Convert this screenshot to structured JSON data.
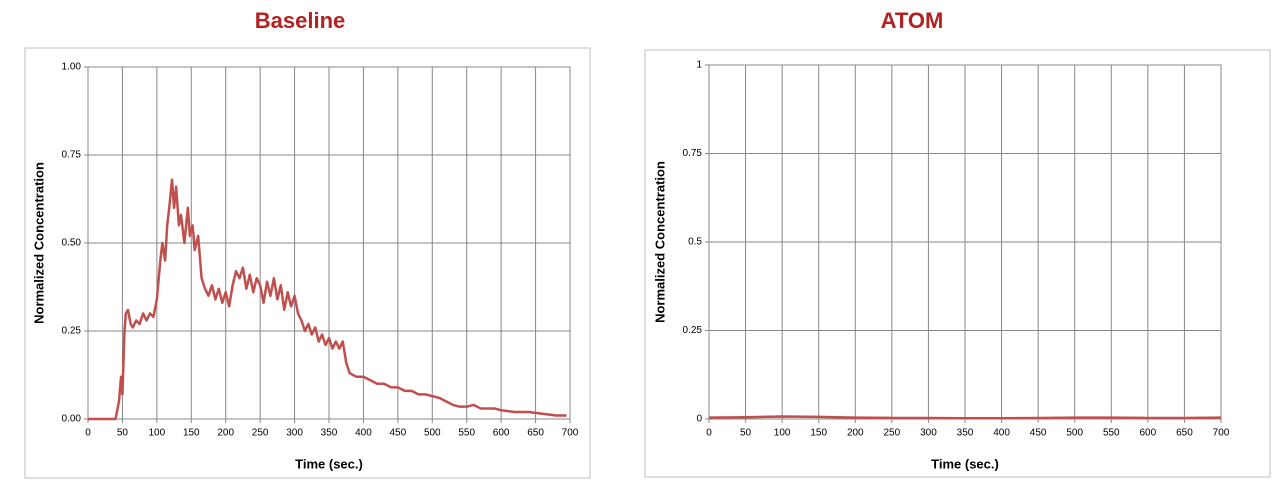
{
  "chart_data": [
    {
      "type": "line",
      "title": "Baseline",
      "xlabel": "Time (sec.)",
      "ylabel": "Normalized Concentration",
      "color": "#c0504d",
      "grid": true,
      "x": [
        0,
        10,
        20,
        30,
        40,
        45,
        48,
        50,
        53,
        55,
        58,
        62,
        65,
        70,
        75,
        80,
        85,
        90,
        95,
        100,
        105,
        108,
        112,
        115,
        118,
        122,
        125,
        128,
        132,
        135,
        140,
        145,
        148,
        152,
        155,
        160,
        165,
        170,
        175,
        180,
        185,
        190,
        195,
        200,
        205,
        210,
        215,
        220,
        225,
        230,
        235,
        240,
        245,
        250,
        255,
        260,
        265,
        270,
        275,
        280,
        285,
        290,
        295,
        300,
        305,
        310,
        315,
        320,
        325,
        330,
        335,
        340,
        345,
        350,
        355,
        360,
        365,
        370,
        375,
        380,
        390,
        400,
        410,
        420,
        430,
        440,
        450,
        460,
        470,
        480,
        490,
        500,
        510,
        520,
        530,
        540,
        550,
        560,
        570,
        580,
        590,
        600,
        620,
        640,
        660,
        680,
        695
      ],
      "values": [
        0,
        0,
        0,
        0,
        0,
        0.05,
        0.12,
        0.07,
        0.25,
        0.3,
        0.31,
        0.27,
        0.26,
        0.28,
        0.27,
        0.3,
        0.28,
        0.3,
        0.29,
        0.34,
        0.45,
        0.5,
        0.45,
        0.55,
        0.6,
        0.68,
        0.6,
        0.66,
        0.55,
        0.58,
        0.5,
        0.6,
        0.52,
        0.55,
        0.48,
        0.52,
        0.4,
        0.37,
        0.35,
        0.38,
        0.34,
        0.37,
        0.33,
        0.36,
        0.32,
        0.38,
        0.42,
        0.4,
        0.43,
        0.37,
        0.41,
        0.36,
        0.4,
        0.38,
        0.33,
        0.39,
        0.35,
        0.4,
        0.34,
        0.38,
        0.31,
        0.36,
        0.32,
        0.35,
        0.3,
        0.28,
        0.25,
        0.27,
        0.24,
        0.26,
        0.22,
        0.24,
        0.21,
        0.23,
        0.2,
        0.22,
        0.2,
        0.22,
        0.16,
        0.13,
        0.12,
        0.12,
        0.11,
        0.1,
        0.1,
        0.09,
        0.09,
        0.08,
        0.08,
        0.07,
        0.07,
        0.065,
        0.06,
        0.05,
        0.04,
        0.035,
        0.035,
        0.04,
        0.03,
        0.03,
        0.03,
        0.025,
        0.02,
        0.02,
        0.015,
        0.01,
        0.01
      ],
      "xlim": [
        0,
        700
      ],
      "xticks": [
        0,
        50,
        100,
        150,
        200,
        250,
        300,
        350,
        400,
        450,
        500,
        550,
        600,
        650,
        700
      ],
      "ylim": [
        0,
        1
      ],
      "yticks": [
        {
          "value": 0,
          "label": "0.00"
        },
        {
          "value": 0.25,
          "label": "0.25"
        },
        {
          "value": 0.5,
          "label": "0.50"
        },
        {
          "value": 0.75,
          "label": "0.75"
        },
        {
          "value": 1,
          "label": "1.00"
        }
      ]
    },
    {
      "type": "line",
      "title": "ATOM",
      "xlabel": "Time (sec.)",
      "ylabel": "Normalized Concentration",
      "color": "#c0504d",
      "grid": true,
      "x": [
        0,
        50,
        100,
        150,
        200,
        250,
        300,
        350,
        400,
        450,
        500,
        550,
        600,
        650,
        700
      ],
      "values": [
        0.004,
        0.005,
        0.007,
        0.006,
        0.004,
        0.003,
        0.003,
        0.002,
        0.002,
        0.003,
        0.004,
        0.004,
        0.003,
        0.003,
        0.004
      ],
      "xlim": [
        0,
        700
      ],
      "xticks": [
        0,
        50,
        100,
        150,
        200,
        250,
        300,
        350,
        400,
        450,
        500,
        550,
        600,
        650,
        700
      ],
      "ylim": [
        0,
        1
      ],
      "yticks": [
        0,
        0.25,
        0.5,
        0.75,
        1
      ]
    }
  ]
}
